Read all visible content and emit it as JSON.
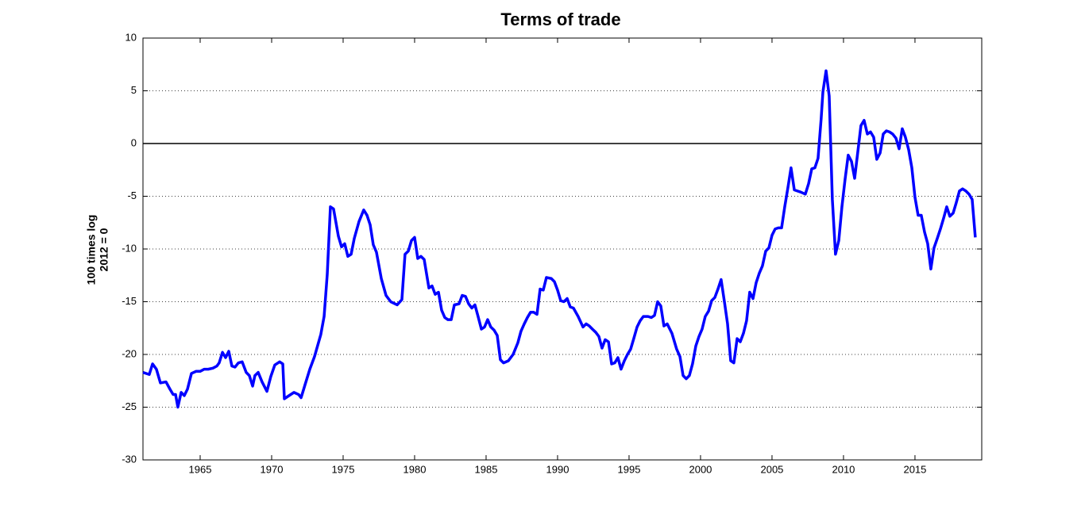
{
  "chart_data": {
    "type": "line",
    "title": "Terms of trade",
    "y_label": [
      "100 times log",
      "2012 = 0"
    ],
    "color": "#0000ff",
    "grid": true,
    "grid_style": "dotted",
    "hline": 0,
    "xlim": [
      1961,
      2019.67
    ],
    "xticks": [
      1965,
      1970,
      1975,
      1980,
      1985,
      1990,
      1995,
      2000,
      2005,
      2010,
      2015
    ],
    "ylim": [
      -30,
      10
    ],
    "yticks": [
      -30,
      -25,
      -20,
      -15,
      -10,
      -5,
      0,
      5,
      10
    ],
    "x": [
      1961.0,
      1961.44,
      1961.67,
      1961.94,
      1962.22,
      1962.61,
      1962.89,
      1963.11,
      1963.28,
      1963.44,
      1963.67,
      1963.89,
      1964.11,
      1964.39,
      1964.72,
      1965.0,
      1965.28,
      1965.56,
      1965.89,
      1966.17,
      1966.33,
      1966.56,
      1966.78,
      1967.0,
      1967.22,
      1967.44,
      1967.67,
      1967.94,
      1968.22,
      1968.44,
      1968.67,
      1968.83,
      1969.06,
      1969.33,
      1969.67,
      1969.94,
      1970.22,
      1970.56,
      1970.78,
      1970.89,
      1971.22,
      1971.56,
      1971.89,
      1972.06,
      1972.33,
      1972.67,
      1973.0,
      1973.44,
      1973.67,
      1973.89,
      1974.11,
      1974.33,
      1974.67,
      1974.89,
      1975.11,
      1975.33,
      1975.56,
      1975.78,
      1976.11,
      1976.44,
      1976.67,
      1976.89,
      1977.11,
      1977.33,
      1977.67,
      1978.0,
      1978.33,
      1978.78,
      1979.11,
      1979.33,
      1979.56,
      1979.78,
      1980.0,
      1980.22,
      1980.44,
      1980.67,
      1981.0,
      1981.22,
      1981.44,
      1981.67,
      1981.89,
      1982.11,
      1982.33,
      1982.56,
      1982.78,
      1983.11,
      1983.33,
      1983.56,
      1983.78,
      1984.0,
      1984.22,
      1984.44,
      1984.67,
      1984.89,
      1985.11,
      1985.33,
      1985.56,
      1985.78,
      1986.0,
      1986.22,
      1986.56,
      1986.89,
      1987.22,
      1987.44,
      1987.67,
      1987.89,
      1988.11,
      1988.33,
      1988.56,
      1988.78,
      1989.0,
      1989.22,
      1989.56,
      1989.78,
      1990.0,
      1990.22,
      1990.44,
      1990.67,
      1990.89,
      1991.11,
      1991.44,
      1991.78,
      1992.0,
      1992.22,
      1992.44,
      1992.67,
      1992.89,
      1993.11,
      1993.33,
      1993.56,
      1993.78,
      1994.0,
      1994.22,
      1994.44,
      1994.67,
      1994.89,
      1995.11,
      1995.33,
      1995.56,
      1995.78,
      1996.0,
      1996.33,
      1996.56,
      1996.78,
      1997.0,
      1997.22,
      1997.44,
      1997.67,
      1998.0,
      1998.33,
      1998.56,
      1998.78,
      1999.0,
      1999.22,
      1999.44,
      1999.67,
      1999.89,
      2000.11,
      2000.33,
      2000.56,
      2000.78,
      2001.0,
      2001.22,
      2001.44,
      2001.67,
      2001.89,
      2002.11,
      2002.33,
      2002.56,
      2002.78,
      2003.0,
      2003.22,
      2003.44,
      2003.67,
      2003.89,
      2004.11,
      2004.33,
      2004.56,
      2004.78,
      2005.0,
      2005.22,
      2005.44,
      2005.67,
      2005.89,
      2006.11,
      2006.33,
      2006.56,
      2006.78,
      2007.0,
      2007.33,
      2007.56,
      2007.78,
      2008.0,
      2008.22,
      2008.44,
      2008.56,
      2008.78,
      2009.0,
      2009.22,
      2009.44,
      2009.67,
      2009.89,
      2010.11,
      2010.33,
      2010.56,
      2010.78,
      2011.0,
      2011.22,
      2011.44,
      2011.67,
      2011.89,
      2012.11,
      2012.33,
      2012.56,
      2012.78,
      2013.0,
      2013.22,
      2013.44,
      2013.67,
      2013.89,
      2014.11,
      2014.33,
      2014.56,
      2014.78,
      2015.0,
      2015.22,
      2015.44,
      2015.67,
      2015.89,
      2016.11,
      2016.33,
      2016.56,
      2016.78,
      2017.0,
      2017.22,
      2017.44,
      2017.67,
      2017.89,
      2018.11,
      2018.33,
      2018.56,
      2018.78,
      2019.0,
      2019.22
    ],
    "values": [
      -21.7,
      -21.9,
      -20.9,
      -21.4,
      -22.7,
      -22.6,
      -23.3,
      -23.8,
      -23.8,
      -25.0,
      -23.6,
      -23.9,
      -23.3,
      -21.8,
      -21.6,
      -21.6,
      -21.4,
      -21.4,
      -21.3,
      -21.1,
      -20.8,
      -19.8,
      -20.3,
      -19.7,
      -21.1,
      -21.2,
      -20.8,
      -20.7,
      -21.7,
      -22.0,
      -23.0,
      -22.0,
      -21.7,
      -22.6,
      -23.5,
      -22.1,
      -21.0,
      -20.7,
      -20.9,
      -24.2,
      -23.9,
      -23.6,
      -23.8,
      -24.1,
      -22.9,
      -21.4,
      -20.2,
      -18.1,
      -16.4,
      -12.4,
      -6.0,
      -6.2,
      -8.8,
      -9.8,
      -9.5,
      -10.7,
      -10.5,
      -9.0,
      -7.4,
      -6.3,
      -6.8,
      -7.7,
      -9.6,
      -10.3,
      -12.8,
      -14.4,
      -15.0,
      -15.3,
      -14.8,
      -10.5,
      -10.2,
      -9.2,
      -8.9,
      -10.9,
      -10.7,
      -11.0,
      -13.7,
      -13.5,
      -14.3,
      -14.1,
      -15.8,
      -16.5,
      -16.7,
      -16.7,
      -15.3,
      -15.2,
      -14.4,
      -14.5,
      -15.2,
      -15.6,
      -15.3,
      -16.4,
      -17.6,
      -17.4,
      -16.7,
      -17.4,
      -17.7,
      -18.2,
      -20.5,
      -20.8,
      -20.6,
      -20.0,
      -18.9,
      -17.8,
      -17.1,
      -16.5,
      -16.0,
      -16.0,
      -16.2,
      -13.8,
      -13.9,
      -12.7,
      -12.8,
      -13.1,
      -13.9,
      -14.9,
      -15.0,
      -14.7,
      -15.5,
      -15.6,
      -16.4,
      -17.4,
      -17.1,
      -17.3,
      -17.6,
      -17.9,
      -18.3,
      -19.4,
      -18.6,
      -18.8,
      -20.9,
      -20.8,
      -20.3,
      -21.4,
      -20.6,
      -20.0,
      -19.5,
      -18.5,
      -17.4,
      -16.8,
      -16.4,
      -16.4,
      -16.5,
      -16.3,
      -15.0,
      -15.4,
      -17.3,
      -17.1,
      -18.0,
      -19.5,
      -20.2,
      -22.0,
      -22.3,
      -22.0,
      -20.9,
      -19.2,
      -18.3,
      -17.6,
      -16.4,
      -15.9,
      -14.9,
      -14.6,
      -13.8,
      -12.9,
      -15.0,
      -17.1,
      -20.6,
      -20.8,
      -18.5,
      -18.8,
      -18.0,
      -16.8,
      -14.1,
      -14.7,
      -13.2,
      -12.3,
      -11.6,
      -10.2,
      -9.9,
      -8.7,
      -8.1,
      -8.0,
      -8.0,
      -6.0,
      -4.2,
      -2.3,
      -4.4,
      -4.5,
      -4.6,
      -4.8,
      -3.8,
      -2.4,
      -2.3,
      -1.4,
      2.4,
      4.9,
      6.9,
      4.5,
      -5.3,
      -10.5,
      -9.2,
      -6.0,
      -3.4,
      -1.1,
      -1.7,
      -3.3,
      -0.8,
      1.7,
      2.2,
      0.9,
      1.1,
      0.6,
      -1.5,
      -0.9,
      0.9,
      1.2,
      1.1,
      0.9,
      0.5,
      -0.5,
      1.4,
      0.6,
      -0.6,
      -2.3,
      -5.1,
      -6.8,
      -6.8,
      -8.4,
      -9.5,
      -11.9,
      -9.9,
      -9.0,
      -8.1,
      -7.1,
      -6.0,
      -6.9,
      -6.6,
      -5.6,
      -4.5,
      -4.3,
      -4.5,
      -4.8,
      -5.3,
      -8.9
    ]
  }
}
